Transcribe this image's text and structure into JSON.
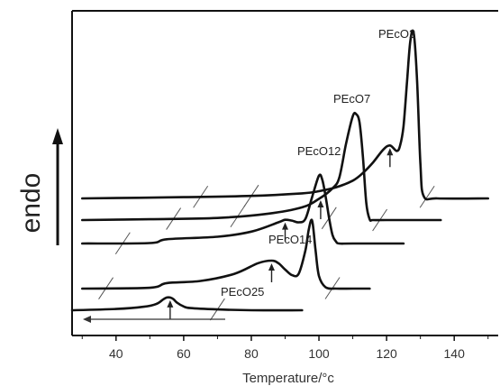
{
  "chart_data": {
    "type": "line",
    "xlabel": "Temperature/°c",
    "ylabel": "endo",
    "xlim": [
      27,
      153
    ],
    "xticks": [
      40,
      60,
      80,
      100,
      120,
      140
    ],
    "xtick_labels": [
      "40",
      "60",
      "80",
      "100",
      "120",
      "140"
    ],
    "y_axis_ticks": false,
    "grid": false,
    "series": [
      {
        "name": "PEcO2",
        "x": [
          30,
          60,
          80,
          95,
          100,
          105,
          110,
          113,
          116,
          119,
          121,
          123,
          124,
          125,
          126,
          127,
          128,
          129,
          130,
          131,
          135,
          150
        ],
        "y": [
          0,
          0.3,
          0.6,
          1.2,
          1.7,
          2.6,
          4.2,
          6.0,
          8.5,
          11.5,
          12.5,
          11.2,
          12.5,
          17,
          27,
          37,
          39,
          28,
          8,
          0.5,
          0.0,
          0.0
        ],
        "peak_marker_x": 121
      },
      {
        "name": "PEcO7",
        "x": [
          30,
          50,
          70,
          85,
          95,
          100,
          104,
          106,
          108,
          110,
          111,
          112,
          113,
          114,
          115,
          116,
          120,
          136
        ],
        "y": [
          0,
          0.2,
          0.5,
          1.5,
          3.0,
          5.0,
          7.5,
          10,
          18,
          24.5,
          25,
          23,
          15,
          4,
          0.2,
          0.0,
          0.0,
          0.0
        ],
        "peak_marker_x": 100.5
      },
      {
        "name": "PEcO12",
        "x": [
          30,
          50,
          55,
          70,
          80,
          88,
          90,
          92,
          94,
          96,
          98,
          100,
          101,
          102,
          103,
          104,
          105,
          106,
          110,
          125
        ],
        "y": [
          0,
          0.1,
          1.0,
          1.6,
          2.8,
          5.0,
          5.6,
          5.4,
          5.0,
          5.8,
          11,
          16,
          15,
          11,
          6,
          2,
          0.5,
          0.0,
          0.0,
          0.0
        ],
        "peak_marker_x": 90
      },
      {
        "name": "PEcO14",
        "x": [
          30,
          50,
          55,
          65,
          75,
          82,
          86,
          88,
          90,
          92,
          94,
          96,
          97,
          98,
          99,
          100,
          102,
          105,
          110,
          115
        ],
        "y": [
          0,
          0.2,
          1.3,
          1.8,
          3.5,
          6.0,
          6.6,
          6.0,
          4.5,
          3.2,
          3.5,
          9,
          14,
          16,
          9,
          3,
          0.3,
          0.0,
          0.0,
          0.0
        ],
        "peak_marker_x": 86
      },
      {
        "name": "PEcO25",
        "x": [
          27,
          40,
          48,
          52,
          54,
          55,
          56,
          57,
          58,
          60,
          62,
          70,
          80,
          95
        ],
        "y": [
          0,
          0.3,
          0.8,
          1.5,
          2.6,
          3.0,
          3.0,
          2.6,
          1.8,
          0.9,
          0.5,
          0.2,
          0.0,
          0.0
        ],
        "peak_marker_x": 56
      }
    ]
  }
}
